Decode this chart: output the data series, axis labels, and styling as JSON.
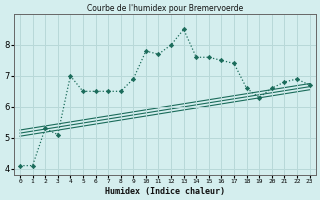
{
  "title": "Courbe de l'humidex pour Bremervoerde",
  "xlabel": "Humidex (Indice chaleur)",
  "bg_color": "#d4eeee",
  "grid_color": "#b8d8d8",
  "line_color": "#1a6b5a",
  "x_main": [
    0,
    1,
    2,
    3,
    4,
    5,
    6,
    7,
    8,
    9,
    10,
    11,
    12,
    13,
    14,
    15,
    16,
    17,
    18,
    19,
    20,
    21,
    22,
    23
  ],
  "y_main": [
    4.1,
    4.1,
    5.3,
    5.1,
    7.0,
    6.5,
    6.5,
    6.5,
    6.5,
    6.9,
    7.8,
    7.7,
    8.0,
    8.5,
    7.6,
    7.6,
    7.5,
    7.4,
    6.6,
    6.3,
    6.6,
    6.8,
    6.9,
    6.7
  ],
  "reg_lines": [
    [
      [
        0,
        23
      ],
      [
        5.05,
        6.55
      ]
    ],
    [
      [
        0,
        23
      ],
      [
        5.15,
        6.65
      ]
    ],
    [
      [
        0,
        23
      ],
      [
        5.25,
        6.75
      ]
    ]
  ],
  "xlim": [
    -0.5,
    23.5
  ],
  "ylim": [
    3.8,
    9.0
  ],
  "yticks": [
    4,
    5,
    6,
    7,
    8
  ],
  "xticks": [
    0,
    1,
    2,
    3,
    4,
    5,
    6,
    7,
    8,
    9,
    10,
    11,
    12,
    13,
    14,
    15,
    16,
    17,
    18,
    19,
    20,
    21,
    22,
    23
  ]
}
